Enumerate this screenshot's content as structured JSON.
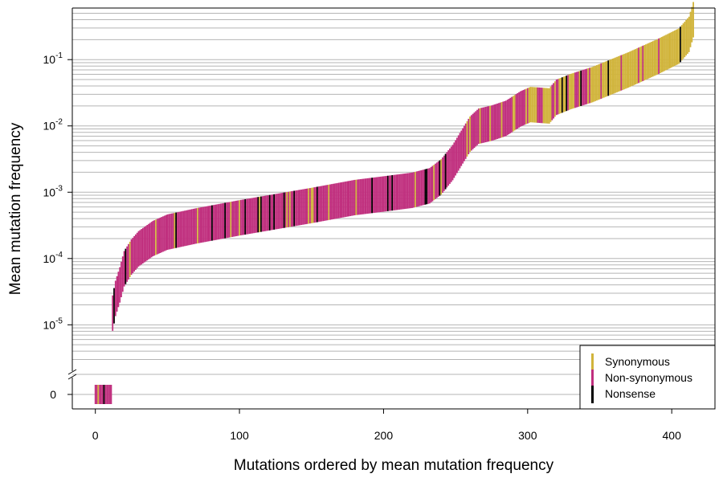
{
  "chart_data": {
    "type": "bar",
    "title": "",
    "xlabel": "Mutations ordered by mean mutation frequency",
    "ylabel": "Mean mutation frequency",
    "x_ticks": [
      0,
      100,
      200,
      300,
      400
    ],
    "x_range": [
      -16,
      430
    ],
    "y_scale": "log10 with broken axis at zero",
    "y_range": [
      2.5e-06,
      0.6
    ],
    "y_ticks": [
      {
        "base": "10",
        "exp": "-5"
      },
      {
        "base": "10",
        "exp": "-4"
      },
      {
        "base": "10",
        "exp": "-3"
      },
      {
        "base": "10",
        "exp": "-2"
      },
      {
        "base": "10",
        "exp": "-1"
      }
    ],
    "zero_tick": "0",
    "grid": true,
    "legend": {
      "position": "bottom-right",
      "entries": [
        {
          "label": "Synonymous",
          "color": "#d1b43b"
        },
        {
          "label": "Non-synonymous",
          "color": "#c02f7e"
        },
        {
          "label": "Nonsense",
          "color": "#000000"
        }
      ]
    },
    "n_mutations": 415,
    "zero_count": 11,
    "bar_width": 1,
    "series": [
      {
        "type": "Non-synonymous",
        "color": "#c02f7e"
      },
      {
        "type": "Synonymous",
        "color": "#d1b43b"
      },
      {
        "type": "Nonsense",
        "color": "#000000"
      }
    ],
    "curve_anchors": [
      {
        "x": 12,
        "y": 1.5e-05
      },
      {
        "x": 14,
        "y": 2.5e-05
      },
      {
        "x": 17,
        "y": 4e-05
      },
      {
        "x": 20,
        "y": 7e-05
      },
      {
        "x": 25,
        "y": 0.000105
      },
      {
        "x": 30,
        "y": 0.00014
      },
      {
        "x": 40,
        "y": 0.0002
      },
      {
        "x": 50,
        "y": 0.00025
      },
      {
        "x": 70,
        "y": 0.00031
      },
      {
        "x": 100,
        "y": 0.00041
      },
      {
        "x": 150,
        "y": 0.00063
      },
      {
        "x": 180,
        "y": 0.00083
      },
      {
        "x": 200,
        "y": 0.00094
      },
      {
        "x": 220,
        "y": 0.00107
      },
      {
        "x": 232,
        "y": 0.00125
      },
      {
        "x": 240,
        "y": 0.0017
      },
      {
        "x": 248,
        "y": 0.0028
      },
      {
        "x": 255,
        "y": 0.005
      },
      {
        "x": 260,
        "y": 0.0075
      },
      {
        "x": 266,
        "y": 0.0099
      },
      {
        "x": 275,
        "y": 0.011
      },
      {
        "x": 285,
        "y": 0.013
      },
      {
        "x": 295,
        "y": 0.018
      },
      {
        "x": 302,
        "y": 0.021
      },
      {
        "x": 315,
        "y": 0.02
      },
      {
        "x": 320,
        "y": 0.027
      },
      {
        "x": 330,
        "y": 0.033
      },
      {
        "x": 345,
        "y": 0.042
      },
      {
        "x": 370,
        "y": 0.07
      },
      {
        "x": 390,
        "y": 0.11
      },
      {
        "x": 405,
        "y": 0.16
      },
      {
        "x": 412,
        "y": 0.24
      },
      {
        "x": 415,
        "y": 0.4
      }
    ],
    "bar_height_factor": 1.85,
    "synonymous_fraction_by_x": [
      {
        "x": 0,
        "p": 0.05
      },
      {
        "x": 230,
        "p": 0.08
      },
      {
        "x": 250,
        "p": 0.12
      },
      {
        "x": 300,
        "p": 0.35
      },
      {
        "x": 340,
        "p": 0.7
      },
      {
        "x": 415,
        "p": 0.85
      }
    ],
    "nonsense_fraction_by_x": [
      {
        "x": 0,
        "p": 0.08
      },
      {
        "x": 240,
        "p": 0.06
      },
      {
        "x": 270,
        "p": 0.02
      },
      {
        "x": 415,
        "p": 0.01
      }
    ]
  }
}
